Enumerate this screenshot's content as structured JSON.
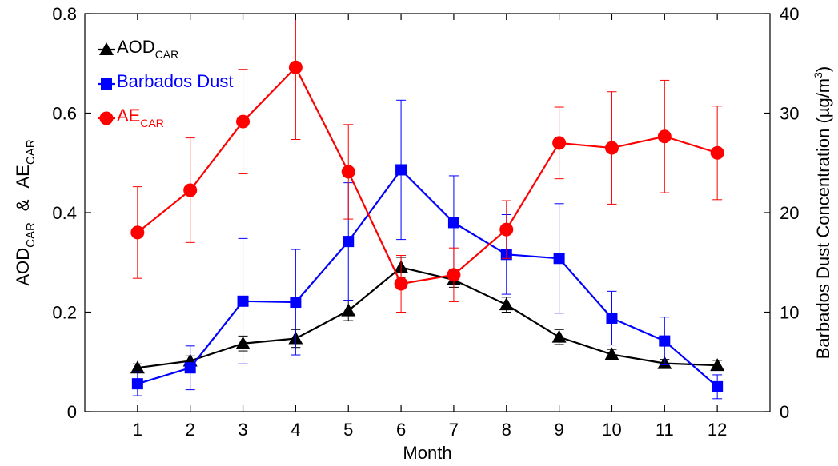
{
  "chart_data": {
    "type": "line",
    "xlabel": "Month",
    "ylabel_parts": [
      {
        "text": "AOD",
        "sub": "CAR"
      },
      {
        "text": "&"
      },
      {
        "text": "AE",
        "sub": "CAR"
      }
    ],
    "y2label_parts": [
      {
        "text": "Barbados Dust Concentration (µg/m",
        "sup": "3"
      },
      {
        "text": ")"
      }
    ],
    "x": [
      1,
      2,
      3,
      4,
      5,
      6,
      7,
      8,
      9,
      10,
      11,
      12
    ],
    "xlim": [
      0,
      13
    ],
    "xticks": [
      1,
      2,
      3,
      4,
      5,
      6,
      7,
      8,
      9,
      10,
      11,
      12
    ],
    "ylim": [
      0,
      0.8
    ],
    "yticks": [
      0,
      0.2,
      0.4,
      0.6,
      0.8
    ],
    "y2lim": [
      0,
      40
    ],
    "y2ticks": [
      0,
      10,
      20,
      30,
      40
    ],
    "legend": "upper left",
    "series": [
      {
        "name": "AOD",
        "name_sub": "CAR",
        "color": "#000000",
        "marker": "triangle",
        "values": [
          0.088,
          0.102,
          0.137,
          0.147,
          0.203,
          0.29,
          0.265,
          0.215,
          0.15,
          0.115,
          0.097,
          0.093
        ],
        "errors": [
          0.008,
          0.01,
          0.015,
          0.018,
          0.02,
          0.02,
          0.015,
          0.015,
          0.015,
          0.01,
          0.008,
          0.01
        ]
      },
      {
        "name": "Barbados Dust",
        "color": "#0000ff",
        "marker": "square",
        "axis": "y2",
        "values": [
          2.8,
          4.4,
          11.1,
          11.0,
          17.1,
          24.3,
          19.0,
          15.8,
          15.4,
          9.4,
          7.1,
          2.5
        ],
        "errors": [
          1.2,
          2.2,
          6.3,
          5.3,
          5.9,
          7.0,
          4.7,
          4.0,
          5.5,
          2.7,
          2.4,
          1.2
        ]
      },
      {
        "name": "AE",
        "name_sub": "CAR",
        "color": "#ff0000",
        "marker": "circle",
        "values": [
          0.36,
          0.445,
          0.583,
          0.692,
          0.482,
          0.257,
          0.275,
          0.366,
          0.54,
          0.53,
          0.553,
          0.52
        ],
        "errors": [
          0.092,
          0.105,
          0.105,
          0.145,
          0.095,
          0.057,
          0.054,
          0.058,
          0.072,
          0.113,
          0.113,
          0.094
        ]
      }
    ]
  }
}
